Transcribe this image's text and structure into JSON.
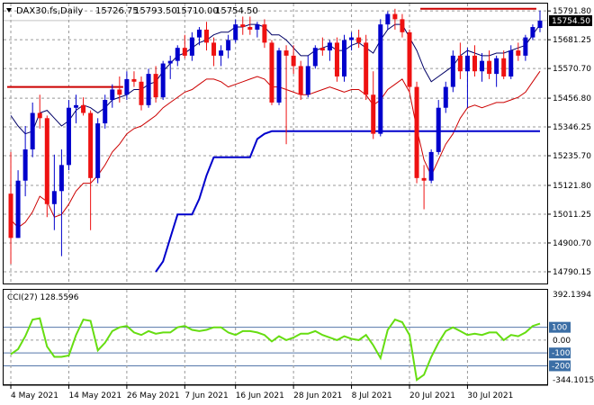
{
  "header": {
    "symbol": "DAX30.fs,Daily",
    "open": "15726.75",
    "high": "15793.50",
    "low": "15710.00",
    "close": "15754.50"
  },
  "price_axis": {
    "ticks": [
      "15791.80",
      "15681.25",
      "15570.70",
      "15456.80",
      "15346.25",
      "15235.70",
      "15121.80",
      "15011.25",
      "14900.70",
      "14790.15"
    ],
    "current": "15754.50"
  },
  "cci": {
    "title": "CCI(27) 128.5596",
    "ticks": [
      "392.1394",
      "100",
      "0.00",
      "-100",
      "-200",
      "-344.1015"
    ]
  },
  "x_labels": [
    "4 May 2021",
    "14 May 2021",
    "26 May 2021",
    "7 Jun 2021",
    "16 Jun 2021",
    "28 Jun 2021",
    "8 Jul 2021",
    "20 Jul 2021",
    "30 Jul 2021"
  ],
  "colors": {
    "up": "#0000cc",
    "down": "#ee1111",
    "upper_band": "#000066",
    "lower_band": "#cc0000",
    "trendline": "#0000cc",
    "resistance": "#cc0000",
    "cci_line": "#66dd11",
    "current_box": "#000000"
  },
  "chart_data": {
    "type": "candlestick",
    "candles": [
      {
        "o": 15090,
        "h": 15250,
        "l": 14820,
        "c": 14920
      },
      {
        "o": 14920,
        "h": 15180,
        "l": 14920,
        "c": 15140
      },
      {
        "o": 15140,
        "h": 15350,
        "l": 15080,
        "c": 15260
      },
      {
        "o": 15260,
        "h": 15440,
        "l": 15230,
        "c": 15400
      },
      {
        "o": 15400,
        "h": 15470,
        "l": 15340,
        "c": 15380
      },
      {
        "o": 15380,
        "h": 15390,
        "l": 15000,
        "c": 15050
      },
      {
        "o": 15050,
        "h": 15240,
        "l": 14950,
        "c": 15100
      },
      {
        "o": 15100,
        "h": 15260,
        "l": 14850,
        "c": 15200
      },
      {
        "o": 15200,
        "h": 15450,
        "l": 15180,
        "c": 15420
      },
      {
        "o": 15420,
        "h": 15470,
        "l": 15360,
        "c": 15430
      },
      {
        "o": 15430,
        "h": 15460,
        "l": 15390,
        "c": 15400
      },
      {
        "o": 15400,
        "h": 15410,
        "l": 14950,
        "c": 15150
      },
      {
        "o": 15150,
        "h": 15380,
        "l": 15130,
        "c": 15360
      },
      {
        "o": 15360,
        "h": 15470,
        "l": 15340,
        "c": 15450
      },
      {
        "o": 15450,
        "h": 15510,
        "l": 15420,
        "c": 15490
      },
      {
        "o": 15490,
        "h": 15540,
        "l": 15440,
        "c": 15470
      },
      {
        "o": 15470,
        "h": 15560,
        "l": 15450,
        "c": 15530
      },
      {
        "o": 15530,
        "h": 15560,
        "l": 15500,
        "c": 15520
      },
      {
        "o": 15520,
        "h": 15540,
        "l": 15410,
        "c": 15430
      },
      {
        "o": 15430,
        "h": 15570,
        "l": 15420,
        "c": 15550
      },
      {
        "o": 15550,
        "h": 15580,
        "l": 15440,
        "c": 15460
      },
      {
        "o": 15460,
        "h": 15600,
        "l": 15450,
        "c": 15590
      },
      {
        "o": 15590,
        "h": 15620,
        "l": 15530,
        "c": 15600
      },
      {
        "o": 15600,
        "h": 15660,
        "l": 15580,
        "c": 15650
      },
      {
        "o": 15650,
        "h": 15700,
        "l": 15610,
        "c": 15620
      },
      {
        "o": 15620,
        "h": 15710,
        "l": 15600,
        "c": 15690
      },
      {
        "o": 15690,
        "h": 15730,
        "l": 15660,
        "c": 15720
      },
      {
        "o": 15720,
        "h": 15750,
        "l": 15640,
        "c": 15670
      },
      {
        "o": 15670,
        "h": 15690,
        "l": 15580,
        "c": 15620
      },
      {
        "o": 15620,
        "h": 15660,
        "l": 15580,
        "c": 15640
      },
      {
        "o": 15640,
        "h": 15700,
        "l": 15610,
        "c": 15680
      },
      {
        "o": 15680,
        "h": 15760,
        "l": 15670,
        "c": 15740
      },
      {
        "o": 15740,
        "h": 15770,
        "l": 15700,
        "c": 15730
      },
      {
        "o": 15730,
        "h": 15770,
        "l": 15700,
        "c": 15720
      },
      {
        "o": 15720,
        "h": 15750,
        "l": 15690,
        "c": 15740
      },
      {
        "o": 15740,
        "h": 15760,
        "l": 15650,
        "c": 15670
      },
      {
        "o": 15670,
        "h": 15680,
        "l": 15430,
        "c": 15440
      },
      {
        "o": 15440,
        "h": 15650,
        "l": 15430,
        "c": 15640
      },
      {
        "o": 15640,
        "h": 15660,
        "l": 15280,
        "c": 15620
      },
      {
        "o": 15620,
        "h": 15660,
        "l": 15550,
        "c": 15580
      },
      {
        "o": 15580,
        "h": 15600,
        "l": 15450,
        "c": 15470
      },
      {
        "o": 15470,
        "h": 15620,
        "l": 15460,
        "c": 15580
      },
      {
        "o": 15580,
        "h": 15660,
        "l": 15570,
        "c": 15650
      },
      {
        "o": 15650,
        "h": 15690,
        "l": 15620,
        "c": 15640
      },
      {
        "o": 15640,
        "h": 15680,
        "l": 15600,
        "c": 15670
      },
      {
        "o": 15670,
        "h": 15690,
        "l": 15520,
        "c": 15540
      },
      {
        "o": 15540,
        "h": 15700,
        "l": 15520,
        "c": 15680
      },
      {
        "o": 15680,
        "h": 15710,
        "l": 15640,
        "c": 15690
      },
      {
        "o": 15690,
        "h": 15720,
        "l": 15650,
        "c": 15670
      },
      {
        "o": 15670,
        "h": 15700,
        "l": 15450,
        "c": 15470
      },
      {
        "o": 15470,
        "h": 15560,
        "l": 15300,
        "c": 15320
      },
      {
        "o": 15320,
        "h": 15760,
        "l": 15310,
        "c": 15740
      },
      {
        "o": 15740,
        "h": 15790,
        "l": 15720,
        "c": 15780
      },
      {
        "o": 15780,
        "h": 15800,
        "l": 15720,
        "c": 15760
      },
      {
        "o": 15760,
        "h": 15780,
        "l": 15690,
        "c": 15710
      },
      {
        "o": 15710,
        "h": 15720,
        "l": 15480,
        "c": 15500
      },
      {
        "o": 15500,
        "h": 15520,
        "l": 15130,
        "c": 15150
      },
      {
        "o": 15150,
        "h": 15200,
        "l": 15030,
        "c": 15140
      },
      {
        "o": 15140,
        "h": 15260,
        "l": 15130,
        "c": 15250
      },
      {
        "o": 15250,
        "h": 15450,
        "l": 15240,
        "c": 15420
      },
      {
        "o": 15420,
        "h": 15520,
        "l": 15400,
        "c": 15500
      },
      {
        "o": 15500,
        "h": 15640,
        "l": 15480,
        "c": 15620
      },
      {
        "o": 15620,
        "h": 15670,
        "l": 15530,
        "c": 15560
      },
      {
        "o": 15560,
        "h": 15650,
        "l": 15420,
        "c": 15620
      },
      {
        "o": 15620,
        "h": 15660,
        "l": 15540,
        "c": 15560
      },
      {
        "o": 15560,
        "h": 15630,
        "l": 15520,
        "c": 15600
      },
      {
        "o": 15600,
        "h": 15640,
        "l": 15530,
        "c": 15550
      },
      {
        "o": 15550,
        "h": 15620,
        "l": 15500,
        "c": 15610
      },
      {
        "o": 15610,
        "h": 15640,
        "l": 15530,
        "c": 15540
      },
      {
        "o": 15540,
        "h": 15660,
        "l": 15530,
        "c": 15640
      },
      {
        "o": 15640,
        "h": 15670,
        "l": 15600,
        "c": 15620
      },
      {
        "o": 15620,
        "h": 15700,
        "l": 15600,
        "c": 15690
      },
      {
        "o": 15690,
        "h": 15740,
        "l": 15680,
        "c": 15730
      },
      {
        "o": 15726.75,
        "h": 15793.5,
        "l": 15710,
        "c": 15754.5
      }
    ],
    "upper_band": [
      15390,
      15350,
      15320,
      15330,
      15400,
      15410,
      15380,
      15350,
      15370,
      15410,
      15430,
      15420,
      15400,
      15420,
      15450,
      15460,
      15470,
      15490,
      15490,
      15510,
      15520,
      15560,
      15590,
      15620,
      15630,
      15650,
      15670,
      15680,
      15700,
      15710,
      15710,
      15730,
      15730,
      15740,
      15740,
      15730,
      15700,
      15700,
      15680,
      15650,
      15620,
      15620,
      15640,
      15650,
      15660,
      15640,
      15640,
      15660,
      15670,
      15650,
      15630,
      15680,
      15720,
      15740,
      15740,
      15690,
      15640,
      15570,
      15520,
      15540,
      15560,
      15580,
      15620,
      15640,
      15630,
      15620,
      15620,
      15630,
      15630,
      15640,
      15650,
      15660,
      15700,
      15740
    ],
    "lower_band": [
      14990,
      14960,
      14980,
      15020,
      15080,
      15060,
      15000,
      15010,
      15050,
      15100,
      15130,
      15130,
      15160,
      15200,
      15250,
      15280,
      15320,
      15340,
      15350,
      15370,
      15390,
      15420,
      15440,
      15460,
      15480,
      15490,
      15510,
      15530,
      15530,
      15520,
      15500,
      15510,
      15520,
      15530,
      15540,
      15530,
      15500,
      15500,
      15490,
      15480,
      15470,
      15470,
      15480,
      15490,
      15500,
      15490,
      15480,
      15490,
      15490,
      15470,
      15430,
      15450,
      15490,
      15510,
      15530,
      15480,
      15340,
      15220,
      15160,
      15220,
      15280,
      15320,
      15380,
      15420,
      15430,
      15420,
      15430,
      15440,
      15440,
      15450,
      15460,
      15480,
      15520,
      15560
    ],
    "trendline": [
      null,
      null,
      null,
      null,
      null,
      null,
      null,
      null,
      null,
      null,
      null,
      null,
      null,
      null,
      null,
      null,
      null,
      null,
      null,
      null,
      14790,
      14830,
      14920,
      15010,
      15010,
      15010,
      15070,
      15160,
      15230,
      15230,
      15230,
      15230,
      15230,
      15230,
      15300,
      15320,
      15330,
      15330,
      15330,
      15330,
      15330,
      15330,
      15330,
      15330,
      15330,
      15330,
      15330,
      15330,
      15330,
      15330,
      15330,
      15330,
      15330,
      15330,
      15330,
      15330,
      15330,
      15330,
      15330,
      15330,
      15330,
      15330,
      15330,
      15330,
      15330,
      15330,
      15330,
      15330,
      15330,
      15330,
      15330,
      15330,
      15330,
      15330
    ],
    "resistance_lines": [
      {
        "from": 0,
        "to": 15,
        "value": 15500
      },
      {
        "from": 57,
        "to": 72,
        "value": 15800
      }
    ],
    "cci": [
      -110,
      -70,
      30,
      160,
      170,
      -50,
      -130,
      -130,
      -120,
      40,
      160,
      150,
      -80,
      -20,
      70,
      100,
      110,
      60,
      40,
      70,
      50,
      60,
      60,
      100,
      110,
      80,
      70,
      80,
      100,
      100,
      60,
      40,
      70,
      70,
      60,
      40,
      -10,
      30,
      0,
      20,
      50,
      50,
      70,
      40,
      20,
      0,
      30,
      10,
      0,
      40,
      -40,
      -140,
      80,
      160,
      140,
      40,
      -310,
      -270,
      -130,
      -20,
      70,
      100,
      70,
      40,
      50,
      40,
      60,
      60,
      0,
      40,
      30,
      60,
      110,
      128.5596
    ],
    "cci_levels": [
      100,
      0,
      -100,
      -200
    ],
    "price_ylim": [
      14745,
      15820
    ],
    "cci_ylim": [
      -344.1015,
      392.1394
    ]
  }
}
